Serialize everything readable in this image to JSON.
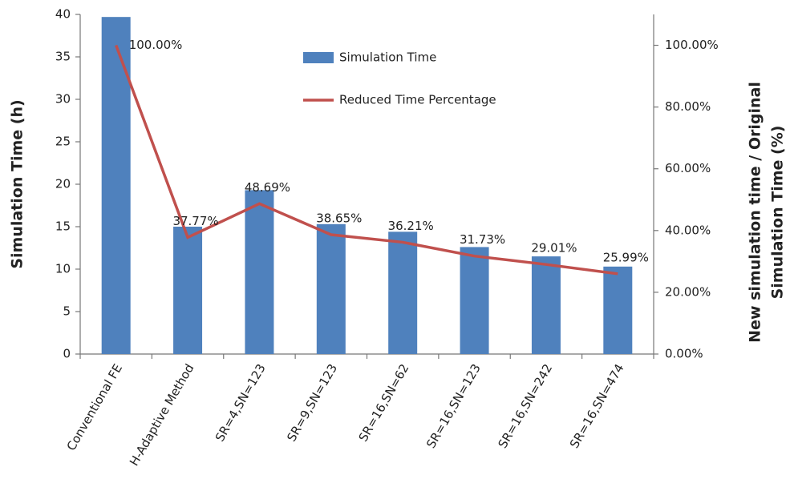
{
  "chart_data": {
    "type": "bar_line",
    "ylabel": "Simulation Time (h)",
    "y2label": [
      "New simulation time  / Original",
      "Simulation Time (%)"
    ],
    "categories": [
      "Conventional FE",
      "H-Adaptive Method",
      "SR=4,SN=123",
      "SR=9,SN=123",
      "SR=16,SN=62",
      "SR=16,SN=123",
      "SR=16,SN=242",
      "SR=16,SN=474"
    ],
    "series": [
      {
        "name": "Simulation Time",
        "color": "#4f81bd",
        "type": "bar",
        "values": [
          39.7,
          15.0,
          19.3,
          15.3,
          14.4,
          12.6,
          11.5,
          10.3
        ]
      },
      {
        "name": "Reduced Time Percentage",
        "color": "#c0504d",
        "type": "line",
        "axis": "y2",
        "values": [
          100,
          37.77,
          48.69,
          38.65,
          36.21,
          31.73,
          29.01,
          25.99
        ],
        "value_labels": [
          "100.00%",
          "37.77%",
          "48.69%",
          "38.65%",
          "36.21%",
          "31.73%",
          "29.01%",
          "25.99%"
        ]
      }
    ],
    "ylim": [
      0,
      40
    ],
    "yticks": [
      0,
      5,
      10,
      15,
      20,
      25,
      30,
      35,
      40
    ],
    "y2lim": [
      0,
      110
    ],
    "y2ticks": [
      {
        "value": 0,
        "label": "0.00%"
      },
      {
        "value": 20,
        "label": "20.00%"
      },
      {
        "value": 40,
        "label": "40.00%"
      },
      {
        "value": 60,
        "label": "60.00%"
      },
      {
        "value": 80,
        "label": "80.00%"
      },
      {
        "value": 100,
        "label": "100.00%"
      }
    ],
    "grid": false,
    "legend": "top"
  }
}
